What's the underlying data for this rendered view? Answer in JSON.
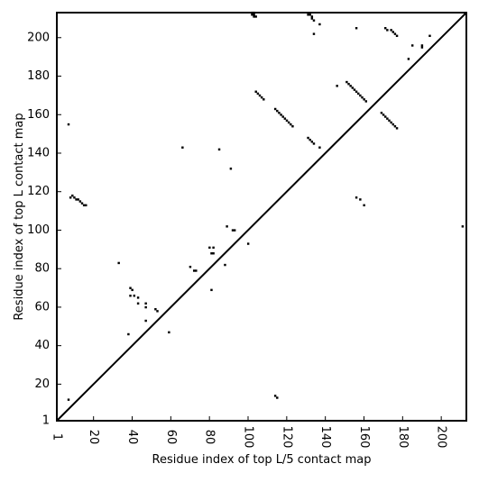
{
  "chart_data": {
    "type": "scatter",
    "xlabel": "Residue index of top L/5 contact map",
    "ylabel": "Residue index of top L contact map",
    "xlim": [
      1,
      213
    ],
    "ylim": [
      1,
      213
    ],
    "xticks": [
      1,
      20,
      40,
      60,
      80,
      100,
      120,
      140,
      160,
      180,
      200
    ],
    "yticks": [
      1,
      20,
      40,
      60,
      80,
      100,
      120,
      140,
      160,
      180,
      200
    ],
    "xtick_labels": [
      "1",
      "20",
      "40",
      "60",
      "80",
      "100",
      "120",
      "140",
      "160",
      "180",
      "200"
    ],
    "ytick_labels": [
      "1",
      "20",
      "40",
      "60",
      "80",
      "100",
      "120",
      "140",
      "160",
      "180",
      "200"
    ],
    "grid": false,
    "diagonal": true,
    "point_color": "#000000",
    "upper_triangle_points": [
      [
        102,
        213
      ],
      [
        103,
        213
      ],
      [
        102,
        212
      ],
      [
        103,
        212
      ],
      [
        103,
        211
      ],
      [
        104,
        211
      ],
      [
        131,
        212
      ],
      [
        132,
        212
      ],
      [
        133,
        211
      ],
      [
        133,
        210
      ],
      [
        134,
        209
      ],
      [
        137,
        207
      ],
      [
        134,
        202
      ],
      [
        156,
        205
      ],
      [
        171,
        205
      ],
      [
        172,
        204
      ],
      [
        174,
        204
      ],
      [
        175,
        203
      ],
      [
        176,
        202
      ],
      [
        177,
        201
      ],
      [
        185,
        196
      ],
      [
        190,
        196
      ],
      [
        190,
        195
      ],
      [
        194,
        201
      ],
      [
        183,
        189
      ],
      [
        104,
        172
      ],
      [
        105,
        171
      ],
      [
        106,
        170
      ],
      [
        107,
        169
      ],
      [
        108,
        168
      ],
      [
        114,
        163
      ],
      [
        115,
        162
      ],
      [
        116,
        161
      ],
      [
        117,
        160
      ],
      [
        118,
        159
      ],
      [
        119,
        158
      ],
      [
        120,
        157
      ],
      [
        121,
        156
      ],
      [
        122,
        155
      ],
      [
        123,
        154
      ],
      [
        131,
        148
      ],
      [
        132,
        147
      ],
      [
        133,
        146
      ],
      [
        134,
        145
      ],
      [
        137,
        143
      ],
      [
        151,
        177
      ],
      [
        152,
        176
      ],
      [
        153,
        175
      ],
      [
        154,
        174
      ],
      [
        155,
        173
      ],
      [
        156,
        172
      ],
      [
        157,
        171
      ],
      [
        158,
        170
      ],
      [
        159,
        169
      ],
      [
        160,
        168
      ],
      [
        161,
        167
      ],
      [
        146,
        175
      ],
      [
        169,
        161
      ],
      [
        170,
        160
      ],
      [
        171,
        159
      ],
      [
        172,
        158
      ],
      [
        173,
        157
      ],
      [
        174,
        156
      ],
      [
        175,
        155
      ],
      [
        176,
        154
      ],
      [
        177,
        153
      ],
      [
        156,
        117
      ],
      [
        158,
        116
      ],
      [
        160,
        113
      ],
      [
        211,
        102
      ]
    ],
    "lower_triangle_points": [
      [
        7,
        155
      ],
      [
        7,
        12
      ],
      [
        8,
        117
      ],
      [
        9,
        118
      ],
      [
        10,
        117
      ],
      [
        11,
        116
      ],
      [
        12,
        116
      ],
      [
        13,
        115
      ],
      [
        14,
        114
      ],
      [
        15,
        113
      ],
      [
        16,
        113
      ],
      [
        33,
        83
      ],
      [
        39,
        70
      ],
      [
        40,
        69
      ],
      [
        39,
        66
      ],
      [
        41,
        66
      ],
      [
        43,
        65
      ],
      [
        43,
        62
      ],
      [
        47,
        62
      ],
      [
        47,
        60
      ],
      [
        52,
        59
      ],
      [
        53,
        58
      ],
      [
        38,
        46
      ],
      [
        47,
        53
      ],
      [
        59,
        47
      ],
      [
        66,
        143
      ],
      [
        70,
        81
      ],
      [
        72,
        79
      ],
      [
        73,
        79
      ],
      [
        80,
        91
      ],
      [
        82,
        91
      ],
      [
        81,
        88
      ],
      [
        82,
        88
      ],
      [
        81,
        69
      ],
      [
        85,
        142
      ],
      [
        88,
        82
      ],
      [
        89,
        102
      ],
      [
        91,
        132
      ],
      [
        92,
        100
      ],
      [
        93,
        100
      ],
      [
        100,
        93
      ],
      [
        114,
        14
      ],
      [
        115,
        13
      ]
    ]
  }
}
